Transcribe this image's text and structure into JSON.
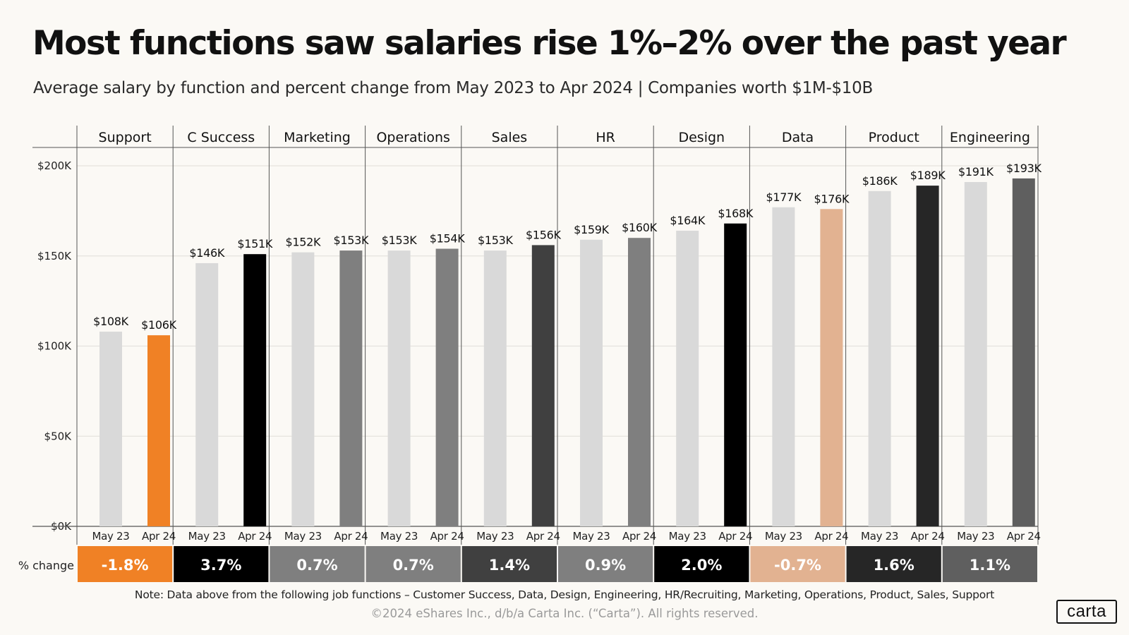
{
  "title": "Most functions saw salaries rise 1%–2% over the past year",
  "subtitle": "Average salary by function and percent change from May 2023 to Apr 2024  |  Companies worth $1M-$10B",
  "note": "Note:  Data above from the following job functions – Customer Success, Data, Design, Engineering, HR/Recruiting, Marketing, Operations, Product,  Sales, Support",
  "copyright": "©2024 eShares Inc., d/b/a Carta Inc. (“Carta”). All rights reserved.",
  "logo_text": "carta",
  "chart_data": {
    "type": "bar",
    "title": "Most functions saw salaries rise 1%–2% over the past year",
    "subtitle": "Average salary by function and percent change from May 2023 to Apr 2024  |  Companies worth $1M-$10B",
    "ylim": [
      0,
      200000
    ],
    "y_ticks": [
      0,
      50000,
      100000,
      150000,
      200000
    ],
    "y_tick_labels": [
      "$0K",
      "$50K",
      "$100K",
      "$150K",
      "$200K"
    ],
    "grid": true,
    "change_row_label": "% change",
    "x_labels": [
      "May 23",
      "Apr 24"
    ],
    "baseline_color": "#d9d9d9",
    "groups": [
      {
        "name": "Support",
        "values": [
          108000,
          106000
        ],
        "labels": [
          "$108K",
          "$106K"
        ],
        "change": "-1.8%",
        "color": "#f08125",
        "change_text_color": "#ffffff"
      },
      {
        "name": "C Success",
        "values": [
          146000,
          151000
        ],
        "labels": [
          "$146K",
          "$151K"
        ],
        "change": "3.7%",
        "color": "#000000",
        "change_text_color": "#ffffff"
      },
      {
        "name": "Marketing",
        "values": [
          152000,
          153000
        ],
        "labels": [
          "$152K",
          "$153K"
        ],
        "change": "0.7%",
        "color": "#7f7f7f",
        "change_text_color": "#ffffff"
      },
      {
        "name": "Operations",
        "values": [
          153000,
          154000
        ],
        "labels": [
          "$153K",
          "$154K"
        ],
        "change": "0.7%",
        "color": "#7f7f7f",
        "change_text_color": "#ffffff"
      },
      {
        "name": "Sales",
        "values": [
          153000,
          156000
        ],
        "labels": [
          "$153K",
          "$156K"
        ],
        "change": "1.4%",
        "color": "#404040",
        "change_text_color": "#ffffff"
      },
      {
        "name": "HR",
        "values": [
          159000,
          160000
        ],
        "labels": [
          "$159K",
          "$160K"
        ],
        "change": "0.9%",
        "color": "#7f7f7f",
        "change_text_color": "#ffffff"
      },
      {
        "name": "Design",
        "values": [
          164000,
          168000
        ],
        "labels": [
          "$164K",
          "$168K"
        ],
        "change": "2.0%",
        "color": "#000000",
        "change_text_color": "#ffffff"
      },
      {
        "name": "Data",
        "values": [
          177000,
          176000
        ],
        "labels": [
          "$177K",
          "$176K"
        ],
        "change": "-0.7%",
        "color": "#e2b291",
        "change_text_color": "#ffffff"
      },
      {
        "name": "Product",
        "values": [
          186000,
          189000
        ],
        "labels": [
          "$186K",
          "$189K"
        ],
        "change": "1.6%",
        "color": "#262626",
        "change_text_color": "#ffffff"
      },
      {
        "name": "Engineering",
        "values": [
          191000,
          193000
        ],
        "labels": [
          "$191K",
          "$193K"
        ],
        "change": "1.1%",
        "color": "#5f5f5f",
        "change_text_color": "#ffffff"
      }
    ]
  }
}
